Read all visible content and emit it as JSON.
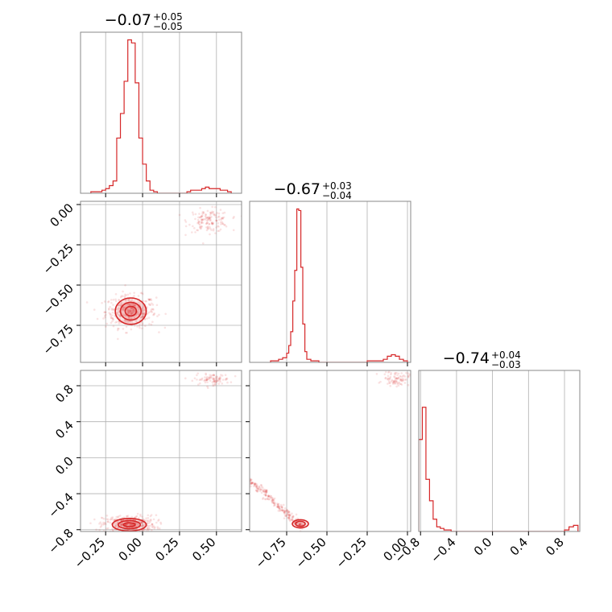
{
  "colors": {
    "accent": "#d62728",
    "frame": "#888888",
    "grid": "#b0b0b0"
  },
  "chart_data": [
    {
      "type": "histogram",
      "panel": "row0-col0",
      "title": {
        "main": "−0.07",
        "sup": "+0.05",
        "sub": "−0.05"
      },
      "xlim": [
        -0.42,
        0.67
      ],
      "ylim": [
        0,
        1.05
      ],
      "grid_x": [
        -0.25,
        0.0,
        0.25,
        0.5
      ],
      "x_ticks": [],
      "bins_x": [
        -0.35,
        -0.3,
        -0.275,
        -0.25,
        -0.225,
        -0.2,
        -0.175,
        -0.15,
        -0.125,
        -0.1,
        -0.075,
        -0.05,
        -0.025,
        0.0,
        0.025,
        0.05,
        0.075,
        0.1,
        0.15,
        0.2,
        0.25,
        0.3,
        0.325,
        0.35,
        0.375,
        0.4,
        0.425,
        0.45,
        0.475,
        0.5,
        0.525,
        0.55,
        0.575,
        0.6
      ],
      "counts": [
        0.01,
        0.01,
        0.02,
        0.03,
        0.05,
        0.08,
        0.36,
        0.52,
        0.73,
        1.0,
        0.98,
        0.72,
        0.36,
        0.19,
        0.08,
        0.02,
        0.01,
        0.0,
        0.0,
        0.0,
        0.0,
        0.01,
        0.02,
        0.02,
        0.02,
        0.03,
        0.04,
        0.03,
        0.03,
        0.03,
        0.02,
        0.02,
        0.01
      ]
    },
    {
      "type": "scatter-contour",
      "panel": "row1-col0",
      "xlim": [
        -0.42,
        0.67
      ],
      "ylim": [
        -0.98,
        0.02
      ],
      "grid_x": [
        -0.25,
        0.0,
        0.25,
        0.5
      ],
      "x_ticks": [],
      "y_ticks": [
        "0.00",
        "−0.25",
        "−0.50",
        "−0.75"
      ],
      "y_tick_values": [
        0.0,
        -0.25,
        -0.5,
        -0.75
      ],
      "clusters": [
        {
          "cx": -0.08,
          "cy": -0.665,
          "sx": 0.085,
          "sy": 0.05,
          "n": 420
        },
        {
          "cx": 0.45,
          "cy": -0.1,
          "sx": 0.07,
          "sy": 0.035,
          "n": 150
        }
      ],
      "contours": [
        {
          "cx": -0.08,
          "cy": -0.662,
          "rx": 0.105,
          "ry": 0.082
        },
        {
          "cx": -0.08,
          "cy": -0.662,
          "rx": 0.07,
          "ry": 0.055
        },
        {
          "cx": -0.08,
          "cy": -0.662,
          "rx": 0.038,
          "ry": 0.03
        }
      ]
    },
    {
      "type": "histogram",
      "panel": "row1-col1",
      "title": {
        "main": "−0.67",
        "sup": "+0.03",
        "sub": "−0.04"
      },
      "xlim": [
        -0.98,
        0.02
      ],
      "ylim": [
        0,
        1.05
      ],
      "grid_x": [
        -0.75,
        -0.5,
        -0.25,
        0.0
      ],
      "x_ticks": [],
      "bins_x": [
        -0.85,
        -0.8,
        -0.775,
        -0.75,
        -0.737,
        -0.725,
        -0.712,
        -0.7,
        -0.687,
        -0.675,
        -0.662,
        -0.65,
        -0.637,
        -0.625,
        -0.6,
        -0.55,
        -0.5,
        -0.45,
        -0.4,
        -0.35,
        -0.3,
        -0.25,
        -0.2,
        -0.15,
        -0.125,
        -0.1,
        -0.075,
        -0.05,
        -0.025,
        0.0
      ],
      "counts": [
        0.01,
        0.02,
        0.03,
        0.06,
        0.11,
        0.2,
        0.4,
        0.6,
        1.0,
        0.99,
        0.62,
        0.25,
        0.07,
        0.02,
        0.01,
        0.0,
        0.0,
        0.0,
        0.0,
        0.0,
        0.0,
        0.01,
        0.01,
        0.02,
        0.04,
        0.05,
        0.04,
        0.02,
        0.01
      ]
    },
    {
      "type": "scatter-contour",
      "panel": "row2-col0",
      "xlim": [
        -0.42,
        0.67
      ],
      "ylim": [
        -0.82,
        0.97
      ],
      "grid_x": [
        -0.25,
        0.0,
        0.25,
        0.5
      ],
      "x_ticks": [
        "−0.25",
        "0.00",
        "0.25",
        "0.50"
      ],
      "x_tick_values": [
        -0.25,
        0.0,
        0.25,
        0.5
      ],
      "y_ticks": [
        "0.8",
        "0.4",
        "0.0",
        "−0.4",
        "−0.8"
      ],
      "y_tick_values": [
        0.8,
        0.4,
        0.0,
        -0.4,
        -0.8
      ],
      "clusters": [
        {
          "cx": -0.09,
          "cy": -0.74,
          "sx": 0.09,
          "sy": 0.05,
          "n": 380
        },
        {
          "cx": 0.47,
          "cy": 0.87,
          "sx": 0.06,
          "sy": 0.03,
          "n": 90
        }
      ],
      "contours": [
        {
          "cx": -0.09,
          "cy": -0.745,
          "rx": 0.115,
          "ry": 0.07
        },
        {
          "cx": -0.09,
          "cy": -0.745,
          "rx": 0.075,
          "ry": 0.045
        },
        {
          "cx": -0.09,
          "cy": -0.745,
          "rx": 0.04,
          "ry": 0.022
        }
      ]
    },
    {
      "type": "scatter-contour",
      "panel": "row2-col1",
      "xlim": [
        -0.98,
        0.02
      ],
      "ylim": [
        -0.82,
        0.97
      ],
      "grid_x": [
        -0.75,
        -0.5,
        -0.25,
        0.0
      ],
      "x_ticks": [
        "−0.75",
        "−0.50",
        "−0.25",
        "0.00"
      ],
      "x_tick_values": [
        -0.75,
        -0.5,
        -0.25,
        0.0
      ],
      "y_ticks": [],
      "clusters": [
        {
          "cx": -0.74,
          "cy": -0.6,
          "sx": 0.08,
          "sy": 0.08,
          "n": 260,
          "diag": true
        },
        {
          "cx": -0.07,
          "cy": 0.88,
          "sx": 0.04,
          "sy": 0.04,
          "n": 90
        }
      ],
      "contours": [
        {
          "cx": -0.665,
          "cy": -0.735,
          "rx": 0.05,
          "ry": 0.045
        },
        {
          "cx": -0.665,
          "cy": -0.735,
          "rx": 0.03,
          "ry": 0.028
        }
      ]
    },
    {
      "type": "histogram",
      "panel": "row2-col2",
      "title": {
        "main": "−0.74",
        "sup": "+0.04",
        "sub": "−0.03"
      },
      "xlim": [
        -0.82,
        0.97
      ],
      "ylim": [
        0,
        1.05
      ],
      "grid_x": [
        -0.8,
        -0.4,
        0.0,
        0.4,
        0.8
      ],
      "x_ticks": [
        "−0.8",
        "−0.4",
        "0.0",
        "0.4",
        "0.8"
      ],
      "x_tick_values": [
        -0.8,
        -0.4,
        0.0,
        0.4,
        0.8
      ],
      "bins_x": [
        -0.82,
        -0.78,
        -0.74,
        -0.7,
        -0.66,
        -0.62,
        -0.58,
        -0.54,
        -0.5,
        -0.46,
        -0.42,
        -0.38,
        -0.3,
        -0.2,
        0.0,
        0.2,
        0.4,
        0.6,
        0.8,
        0.85,
        0.9,
        0.95
      ],
      "counts": [
        0.6,
        0.81,
        0.34,
        0.2,
        0.08,
        0.03,
        0.02,
        0.01,
        0.01,
        0.0,
        0.0,
        0.0,
        0.0,
        0.0,
        0.0,
        0.0,
        0.0,
        0.0,
        0.01,
        0.03,
        0.04
      ]
    }
  ]
}
